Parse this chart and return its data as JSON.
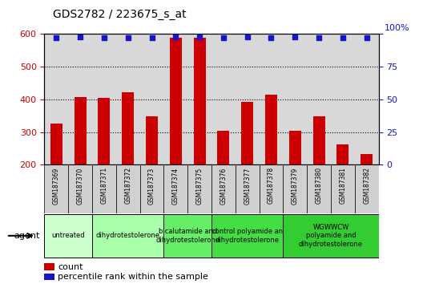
{
  "title": "GDS2782 / 223675_s_at",
  "samples": [
    "GSM187369",
    "GSM187370",
    "GSM187371",
    "GSM187372",
    "GSM187373",
    "GSM187374",
    "GSM187375",
    "GSM187376",
    "GSM187377",
    "GSM187378",
    "GSM187379",
    "GSM187380",
    "GSM187381",
    "GSM187382"
  ],
  "counts": [
    325,
    408,
    405,
    422,
    348,
    590,
    590,
    303,
    393,
    415,
    305,
    348,
    263,
    232
  ],
  "percentile": [
    97,
    98,
    97,
    97,
    97,
    98,
    98,
    97,
    98,
    97,
    98,
    97,
    97,
    97
  ],
  "ylim_left": [
    200,
    600
  ],
  "ylim_right": [
    0,
    100
  ],
  "yticks_left": [
    200,
    300,
    400,
    500,
    600
  ],
  "yticks_right": [
    0,
    25,
    50,
    75,
    100
  ],
  "bar_color": "#cc0000",
  "dot_color": "#1515cc",
  "groups": [
    {
      "label": "untreated",
      "cols": [
        0,
        1
      ],
      "color": "#ccffcc"
    },
    {
      "label": "dihydrotestolerone",
      "cols": [
        2,
        3,
        4
      ],
      "color": "#aaffaa"
    },
    {
      "label": "bicalutamide and\ndihydrotestolerone",
      "cols": [
        5,
        6
      ],
      "color": "#66ee66"
    },
    {
      "label": "control polyamide an\ndihydrotestolerone",
      "cols": [
        7,
        8,
        9
      ],
      "color": "#44dd44"
    },
    {
      "label": "WGWWCW\npolyamide and\ndihydrotestolerone",
      "cols": [
        10,
        11,
        12,
        13
      ],
      "color": "#33cc33"
    }
  ],
  "agent_label": "agent",
  "legend_count": "count",
  "legend_percentile": "percentile rank within the sample",
  "bg_color": "#d8d8d8",
  "bar_bottom": 200
}
